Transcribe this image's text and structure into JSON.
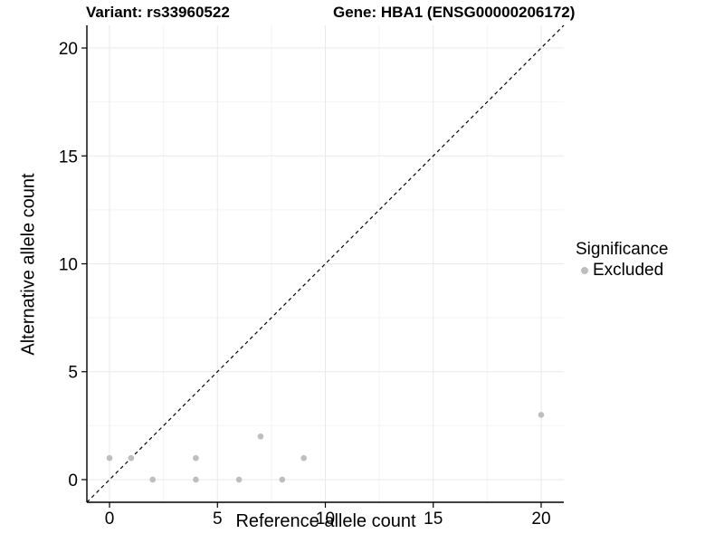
{
  "chart_data": {
    "type": "scatter",
    "titles": [
      "Variant: rs33960522",
      "Gene: HBA1 (ENSG00000206172)"
    ],
    "xlabel": "Reference allele count",
    "ylabel": "Alternative allele count",
    "xlim": [
      -1.05,
      21.05
    ],
    "ylim": [
      -1.05,
      21.05
    ],
    "x_ticks": [
      0,
      5,
      10,
      15,
      20
    ],
    "y_ticks": [
      0,
      5,
      10,
      15,
      20
    ],
    "x_minor_gridlines": [
      2.5,
      7.5,
      12.5,
      17.5
    ],
    "y_minor_gridlines": [
      2.5,
      7.5,
      12.5,
      17.5
    ],
    "grid": "on",
    "legend_position": "right",
    "series": [
      {
        "name": "Excluded",
        "marker": "circle",
        "color": "#bebebe",
        "points": [
          [
            0,
            1
          ],
          [
            1,
            1
          ],
          [
            2,
            0
          ],
          [
            4,
            0
          ],
          [
            4,
            1
          ],
          [
            6,
            0
          ],
          [
            7,
            2
          ],
          [
            8,
            0
          ],
          [
            9,
            1
          ],
          [
            20,
            3
          ]
        ]
      }
    ],
    "reference_line": {
      "kind": "identity y=x",
      "style": "dashed",
      "color": "#000000"
    },
    "legend": {
      "title": "Significance",
      "entries": [
        {
          "label": "Excluded",
          "color": "#bebebe",
          "marker": "circle"
        }
      ]
    }
  },
  "colors": {
    "background": "#ffffff",
    "axis": "#000000",
    "text": "#000000",
    "grid_major": "#e9e9e9",
    "grid_minor": "#f4f4f4",
    "point": "#bebebe"
  }
}
